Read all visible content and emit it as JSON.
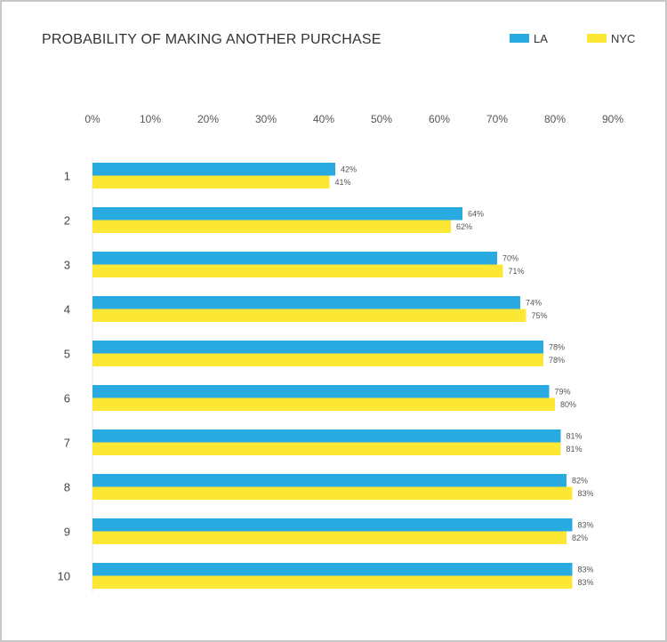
{
  "chart_data": {
    "type": "bar",
    "orientation": "horizontal",
    "title": "PROBABILITY OF MAKING ANOTHER PURCHASE",
    "categories": [
      "1",
      "2",
      "3",
      "4",
      "5",
      "6",
      "7",
      "8",
      "9",
      "10"
    ],
    "series": [
      {
        "name": "LA",
        "color": "#29abe2",
        "values": [
          42,
          64,
          70,
          74,
          78,
          79,
          81,
          82,
          83,
          83
        ],
        "labels": [
          "42%",
          "64%",
          "70%",
          "74%",
          "78%",
          "79%",
          "81%",
          "82%",
          "83%",
          "83%"
        ]
      },
      {
        "name": "NYC",
        "color": "#fbe734",
        "values": [
          41,
          62,
          71,
          75,
          78,
          80,
          81,
          83,
          82,
          83
        ],
        "labels": [
          "41%",
          "62%",
          "71%",
          "75%",
          "78%",
          "80%",
          "81%",
          "83%",
          "82%",
          "83%"
        ]
      }
    ],
    "x_ticks": [
      "0%",
      "10%",
      "20%",
      "30%",
      "40%",
      "50%",
      "60%",
      "70%",
      "80%",
      "90%"
    ],
    "xlim": [
      0,
      90
    ],
    "axis_position": "top",
    "grid": false,
    "legend_position": "top-right"
  }
}
